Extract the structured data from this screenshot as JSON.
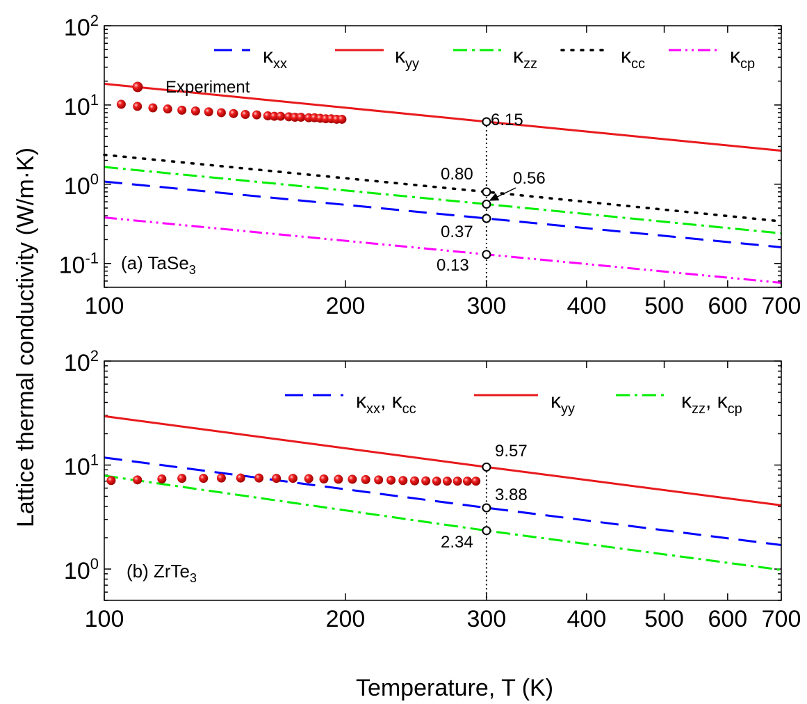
{
  "colors": {
    "kxx": "#0000ff",
    "kyy": "#e8191c",
    "kzz": "#00ee00",
    "kcc": "#000000",
    "kcp": "#ff00ff",
    "experiment": "#e8191c"
  },
  "x_axis_label": "Temperature, T (K)",
  "y_axis_label": "Lattice thermal conductivity (W/m·K)",
  "chart_data": [
    {
      "type": "line",
      "panel_label": "(a) TaSe",
      "panel_label_sub": "3",
      "xscale": "log",
      "yscale": "log",
      "xlim": [
        100,
        700
      ],
      "ylim": [
        0.05,
        100
      ],
      "xticks": [
        100,
        200,
        300,
        400,
        500,
        600,
        700
      ],
      "xtick_labels": [
        "100",
        "200",
        "300",
        "400",
        "500",
        "600",
        "700"
      ],
      "yticks": [
        {
          "value": 0.1,
          "base": "10",
          "exp": "-1"
        },
        {
          "value": 1,
          "base": "10",
          "exp": "0"
        },
        {
          "value": 10,
          "base": "10",
          "exp": "1"
        },
        {
          "value": 100,
          "base": "10",
          "exp": "2"
        }
      ],
      "series": [
        {
          "key": "kxx",
          "name": "κ",
          "sub": "xx",
          "style": "dash",
          "x": [
            100,
            300,
            700
          ],
          "y": [
            1.08,
            0.37,
            0.16
          ]
        },
        {
          "key": "kyy",
          "name": "κ",
          "sub": "yy",
          "style": "solid",
          "x": [
            100,
            300,
            700
          ],
          "y": [
            18.5,
            6.15,
            2.65
          ]
        },
        {
          "key": "kzz",
          "name": "κ",
          "sub": "zz",
          "style": "dashdot",
          "x": [
            100,
            300,
            700
          ],
          "y": [
            1.65,
            0.56,
            0.24
          ]
        },
        {
          "key": "kcc",
          "name": "κ",
          "sub": "cc",
          "style": "dot",
          "x": [
            100,
            300,
            700
          ],
          "y": [
            2.35,
            0.8,
            0.34
          ]
        },
        {
          "key": "kcp",
          "name": "κ",
          "sub": "cp",
          "style": "dashdotdot",
          "x": [
            100,
            300,
            700
          ],
          "y": [
            0.38,
            0.13,
            0.057
          ]
        }
      ],
      "experiment": {
        "name": "Experiment",
        "x": [
          105,
          110,
          115,
          120,
          125,
          130,
          135,
          140,
          145,
          150,
          155,
          160,
          163,
          166,
          170,
          173,
          176,
          180,
          183,
          186,
          189,
          192,
          195,
          198
        ],
        "y": [
          10.2,
          9.6,
          9.2,
          8.9,
          8.6,
          8.4,
          8.2,
          8.0,
          7.8,
          7.6,
          7.5,
          7.3,
          7.2,
          7.2,
          7.1,
          7.0,
          7.0,
          6.9,
          6.9,
          6.8,
          6.7,
          6.7,
          6.6,
          6.6
        ]
      },
      "marker_x": 300,
      "annotations": [
        {
          "text": "6.15",
          "value": 6.15
        },
        {
          "text": "0.80",
          "value": 0.8
        },
        {
          "text": "0.56",
          "value": 0.56
        },
        {
          "text": "0.37",
          "value": 0.37
        },
        {
          "text": "0.13",
          "value": 0.13
        }
      ]
    },
    {
      "type": "line",
      "panel_label": "(b) ZrTe",
      "panel_label_sub": "3",
      "xscale": "log",
      "yscale": "log",
      "xlim": [
        100,
        700
      ],
      "ylim": [
        0.5,
        100
      ],
      "xticks": [
        100,
        200,
        300,
        400,
        500,
        600,
        700
      ],
      "xtick_labels": [
        "100",
        "200",
        "300",
        "400",
        "500",
        "600",
        "700"
      ],
      "yticks": [
        {
          "value": 1,
          "base": "10",
          "exp": "0"
        },
        {
          "value": 10,
          "base": "10",
          "exp": "1"
        },
        {
          "value": 100,
          "base": "10",
          "exp": "2"
        }
      ],
      "series": [
        {
          "key": "kxx",
          "name": "κ",
          "sub": "xx",
          "name2": ", κ",
          "sub2": "cc",
          "style": "dash",
          "x": [
            100,
            300,
            700
          ],
          "y": [
            11.8,
            3.88,
            1.7
          ]
        },
        {
          "key": "kyy",
          "name": "κ",
          "sub": "yy",
          "style": "solid",
          "x": [
            100,
            300,
            700
          ],
          "y": [
            29.5,
            9.57,
            4.1
          ]
        },
        {
          "key": "kzz",
          "name": "κ",
          "sub": "zz",
          "name2": ", κ",
          "sub2": "cp",
          "style": "dashdot",
          "x": [
            100,
            300,
            700
          ],
          "y": [
            7.9,
            2.34,
            0.98
          ]
        }
      ],
      "experiment": {
        "name": "",
        "x": [
          102,
          110,
          118,
          125,
          133,
          140,
          148,
          156,
          164,
          172,
          180,
          188,
          196,
          204,
          212,
          220,
          228,
          236,
          244,
          252,
          260,
          268,
          276,
          284,
          291
        ],
        "y": [
          7.1,
          7.2,
          7.35,
          7.45,
          7.45,
          7.5,
          7.5,
          7.5,
          7.45,
          7.45,
          7.4,
          7.35,
          7.3,
          7.3,
          7.25,
          7.2,
          7.15,
          7.1,
          7.05,
          7.05,
          7.0,
          7.0,
          7.0,
          7.0,
          7.0
        ]
      },
      "marker_x": 300,
      "annotations": [
        {
          "text": "9.57",
          "value": 9.57
        },
        {
          "text": "3.88",
          "value": 3.88
        },
        {
          "text": "2.34",
          "value": 2.34
        }
      ]
    }
  ]
}
